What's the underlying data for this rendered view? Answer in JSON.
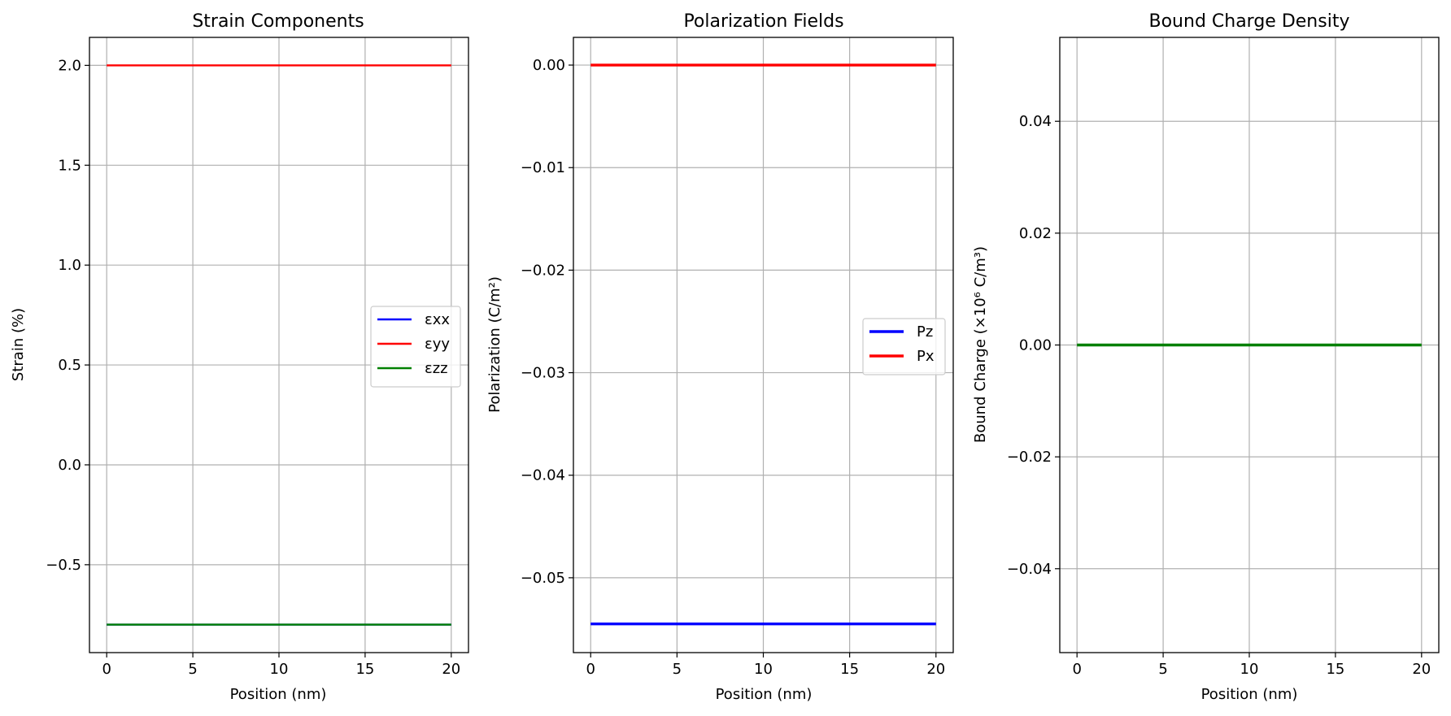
{
  "chart_data": [
    {
      "type": "line",
      "title": "Strain Components",
      "xlabel": "Position (nm)",
      "ylabel": "Strain (%)",
      "xlim": [
        -1,
        21
      ],
      "ylim": [
        -0.94,
        2.14
      ],
      "xticks": [
        0,
        5,
        10,
        15,
        20
      ],
      "xtick_labels": [
        "0",
        "5",
        "10",
        "15",
        "20"
      ],
      "yticks": [
        -0.5,
        0.0,
        0.5,
        1.0,
        1.5,
        2.0
      ],
      "ytick_labels": [
        "−0.5",
        "0.0",
        "0.5",
        "1.0",
        "1.5",
        "2.0"
      ],
      "grid": true,
      "legend": "center-right",
      "series": [
        {
          "name": "εxx",
          "color": "#0000ff",
          "x": [
            0,
            20
          ],
          "values": [
            -0.8,
            -0.8
          ]
        },
        {
          "name": "εyy",
          "color": "#ff0000",
          "x": [
            0,
            20
          ],
          "values": [
            2.0,
            2.0
          ]
        },
        {
          "name": "εzz",
          "color": "#008000",
          "x": [
            0,
            20
          ],
          "values": [
            -0.8,
            -0.8
          ]
        }
      ]
    },
    {
      "type": "line",
      "title": "Polarization Fields",
      "xlabel": "Position (nm)",
      "ylabel": "Polarization (C/m²)",
      "xlim": [
        -1,
        21
      ],
      "ylim": [
        -0.0573,
        0.0027
      ],
      "xticks": [
        0,
        5,
        10,
        15,
        20
      ],
      "xtick_labels": [
        "0",
        "5",
        "10",
        "15",
        "20"
      ],
      "yticks": [
        -0.05,
        -0.04,
        -0.03,
        -0.02,
        -0.01,
        0.0
      ],
      "ytick_labels": [
        "−0.05",
        "−0.04",
        "−0.03",
        "−0.02",
        "−0.01",
        "0.00"
      ],
      "grid": true,
      "legend": "center-right",
      "series": [
        {
          "name": "Pz",
          "color": "#0000ff",
          "x": [
            0,
            20
          ],
          "values": [
            -0.0545,
            -0.0545
          ]
        },
        {
          "name": "Px",
          "color": "#ff0000",
          "x": [
            0,
            20
          ],
          "values": [
            0.0,
            0.0
          ]
        }
      ]
    },
    {
      "type": "line",
      "title": "Bound Charge Density",
      "xlabel": "Position (nm)",
      "ylabel": "Bound Charge (×10⁶ C/m³)",
      "xlim": [
        -1,
        21
      ],
      "ylim": [
        -0.055,
        0.055
      ],
      "xticks": [
        0,
        5,
        10,
        15,
        20
      ],
      "xtick_labels": [
        "0",
        "5",
        "10",
        "15",
        "20"
      ],
      "yticks": [
        -0.04,
        -0.02,
        0.0,
        0.02,
        0.04
      ],
      "ytick_labels": [
        "−0.04",
        "−0.02",
        "0.00",
        "0.02",
        "0.04"
      ],
      "grid": true,
      "legend": "none",
      "series": [
        {
          "color": "#008000",
          "x": [
            0,
            20
          ],
          "values": [
            0.0,
            0.0
          ]
        }
      ]
    }
  ]
}
